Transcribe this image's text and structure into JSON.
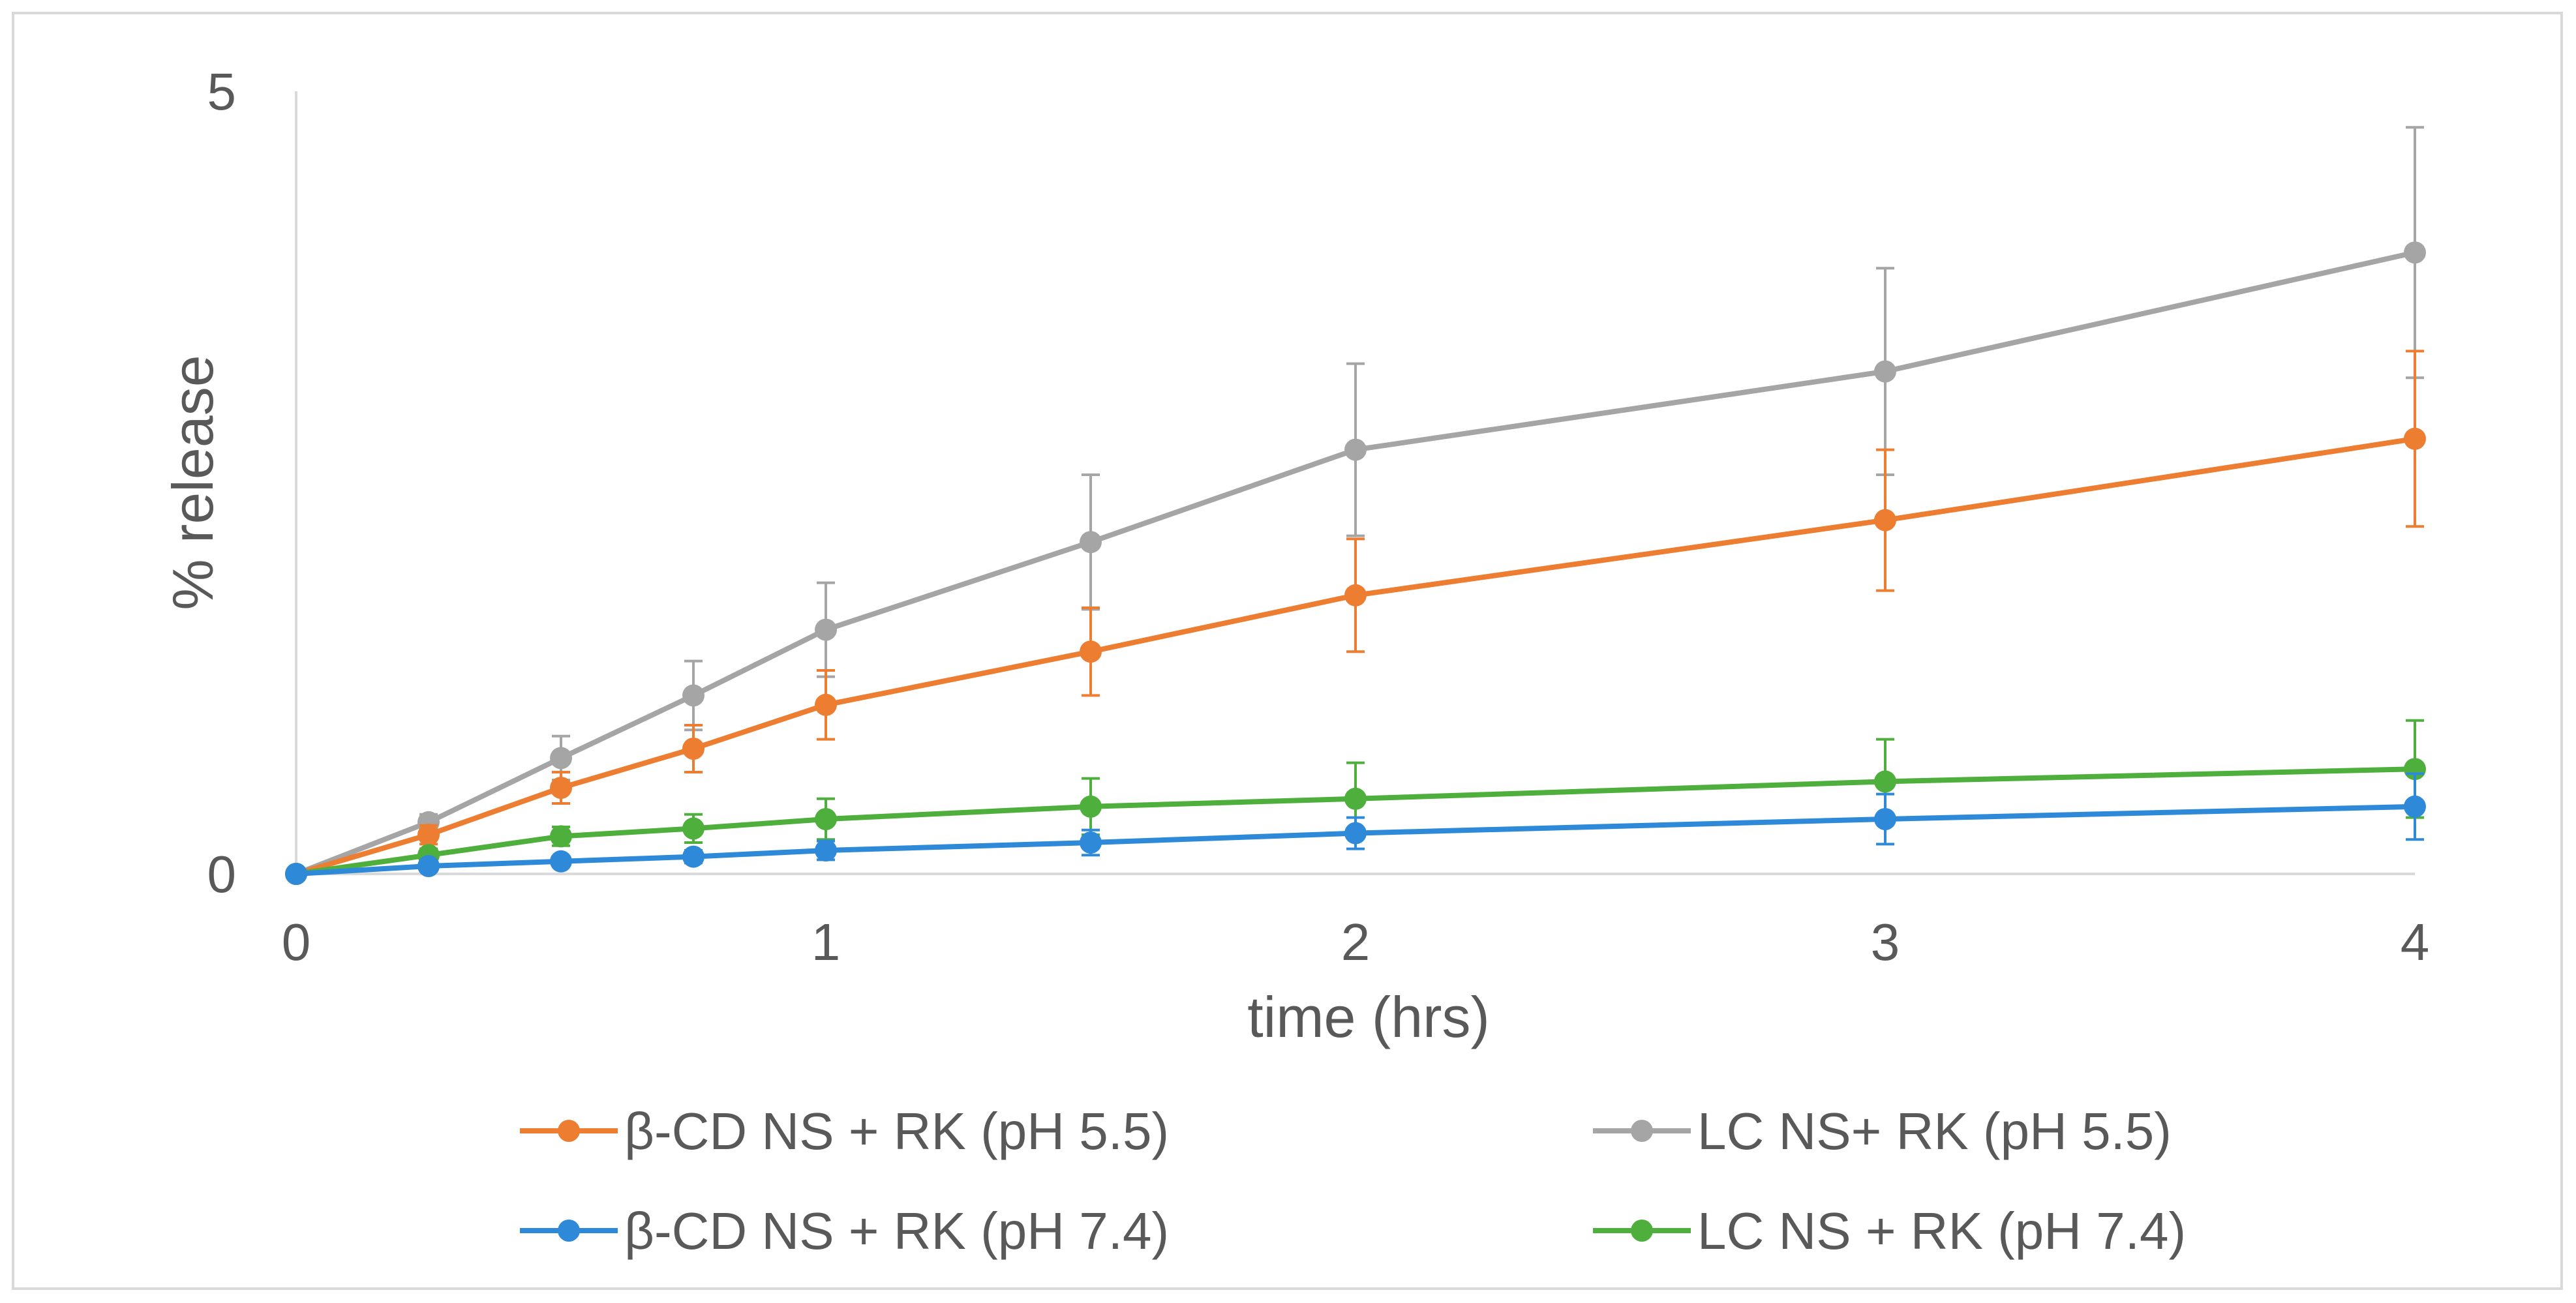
{
  "chart_data": {
    "type": "line",
    "title": "",
    "xlabel": "time (hrs)",
    "ylabel": "% release",
    "xlim": [
      0,
      4
    ],
    "ylim": [
      0,
      5
    ],
    "x_ticks": [
      {
        "value": 0,
        "label": "0"
      },
      {
        "value": 1,
        "label": "1"
      },
      {
        "value": 2,
        "label": "2"
      },
      {
        "value": 3,
        "label": "3"
      },
      {
        "value": 4,
        "label": "4"
      }
    ],
    "y_ticks": [
      {
        "value": 0,
        "label": "0"
      },
      {
        "value": 5,
        "label": "5"
      }
    ],
    "legend_position": "bottom",
    "grid": false,
    "series": [
      {
        "name": "β-CD NS + RK (pH 5.5)",
        "color": "#ED7D31",
        "x": [
          0,
          0.25,
          0.5,
          0.75,
          1,
          1.5,
          2,
          3,
          4
        ],
        "y": [
          0,
          0.25,
          0.55,
          0.8,
          1.08,
          1.42,
          1.78,
          2.26,
          2.78
        ],
        "err": [
          0,
          0.06,
          0.1,
          0.15,
          0.22,
          0.28,
          0.36,
          0.45,
          0.56
        ]
      },
      {
        "name": "LC NS+ RK (pH 5.5)",
        "color": "#A5A5A5",
        "x": [
          0,
          0.25,
          0.5,
          0.75,
          1,
          1.5,
          2,
          3,
          4
        ],
        "y": [
          0,
          0.33,
          0.74,
          1.14,
          1.56,
          2.12,
          2.71,
          3.21,
          3.97
        ],
        "err": [
          0,
          0.05,
          0.14,
          0.22,
          0.3,
          0.43,
          0.55,
          0.66,
          0.8
        ]
      },
      {
        "name": "β-CD NS + RK (pH 7.4)",
        "color": "#2E8AD8",
        "x": [
          0,
          0.25,
          0.5,
          0.75,
          1,
          1.5,
          2,
          3,
          4
        ],
        "y": [
          0,
          0.05,
          0.08,
          0.11,
          0.15,
          0.2,
          0.26,
          0.35,
          0.43
        ],
        "err": [
          0,
          0.02,
          0.03,
          0.04,
          0.06,
          0.08,
          0.1,
          0.16,
          0.21
        ]
      },
      {
        "name": "LC NS + RK (pH 7.4)",
        "color": "#4FAF3D",
        "x": [
          0,
          0.25,
          0.5,
          0.75,
          1,
          1.5,
          2,
          3,
          4
        ],
        "y": [
          0,
          0.12,
          0.24,
          0.29,
          0.35,
          0.43,
          0.48,
          0.59,
          0.67
        ],
        "err": [
          0,
          0.04,
          0.06,
          0.09,
          0.13,
          0.18,
          0.23,
          0.27,
          0.31
        ]
      }
    ]
  }
}
